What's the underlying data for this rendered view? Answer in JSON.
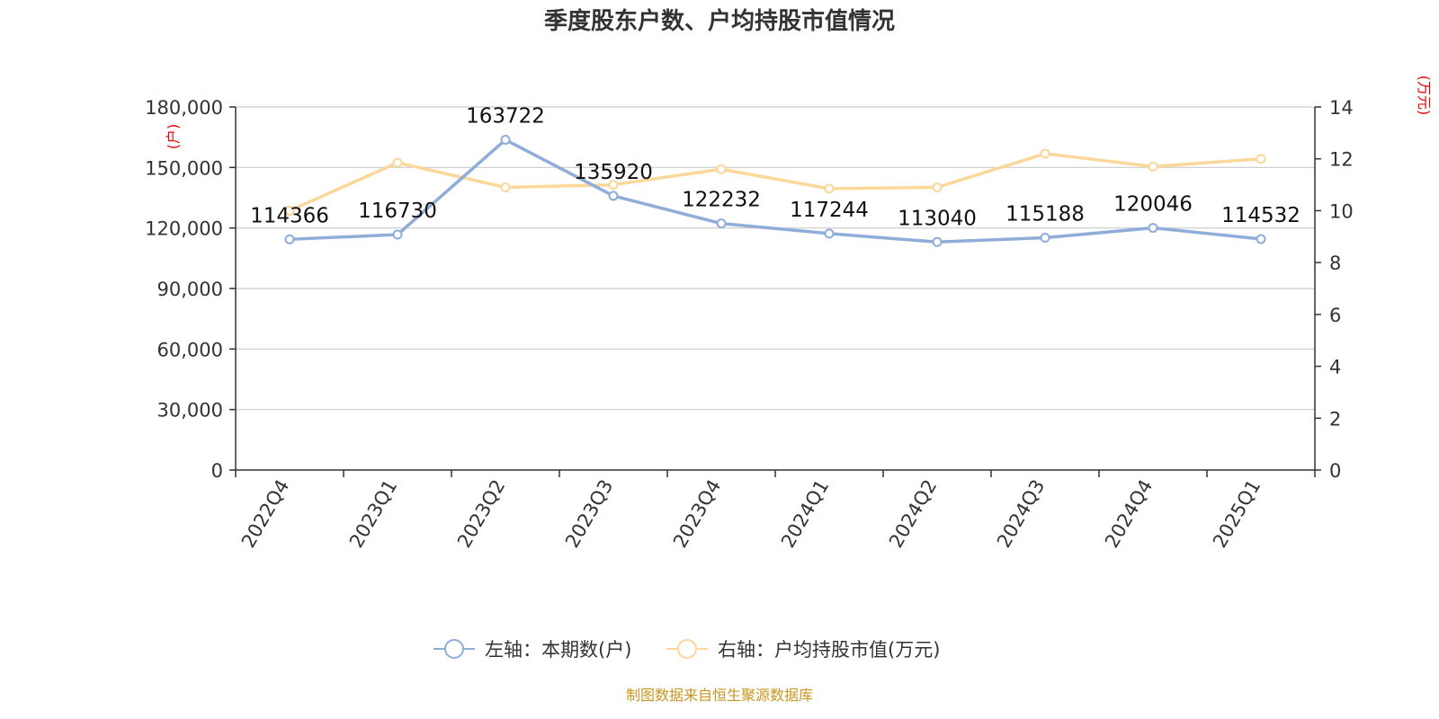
{
  "colors": {
    "left_series": "#8eaed9",
    "right_series": "#fcd79a",
    "unit_label": "#e60000",
    "source": "#c8961e"
  },
  "chart_data": {
    "type": "line",
    "title": "季度股东户数、户均持股市值情况",
    "categories": [
      "2022Q4",
      "2023Q1",
      "2023Q2",
      "2023Q3",
      "2023Q4",
      "2024Q1",
      "2024Q2",
      "2024Q3",
      "2024Q4",
      "2025Q1"
    ],
    "left_axis": {
      "unit": "(户)",
      "ylim": [
        0,
        180000
      ],
      "ticks": [
        0,
        30000,
        60000,
        90000,
        120000,
        150000,
        180000
      ],
      "tick_labels": [
        "0",
        "30,000",
        "60,000",
        "90,000",
        "120,000",
        "150,000",
        "180,000"
      ]
    },
    "right_axis": {
      "unit": "(万元)",
      "ylim": [
        0,
        14
      ],
      "ticks": [
        0,
        2,
        4,
        6,
        8,
        10,
        12,
        14
      ],
      "tick_labels": [
        "0",
        "2",
        "4",
        "6",
        "8",
        "10",
        "12",
        "14"
      ]
    },
    "series": [
      {
        "name": "左轴：本期数(户)",
        "axis": "left",
        "values": [
          114366,
          116730,
          163722,
          135920,
          122232,
          117244,
          113040,
          115188,
          120046,
          114532
        ],
        "labels": [
          "114366",
          "116730",
          "163722",
          "135920",
          "122232",
          "117244",
          "113040",
          "115188",
          "120046",
          "114532"
        ]
      },
      {
        "name": "右轴：户均持股市值(万元)",
        "axis": "right",
        "values": [
          10.0,
          11.85,
          10.9,
          11.0,
          11.6,
          10.85,
          10.9,
          12.2,
          11.7,
          12.0
        ]
      }
    ],
    "grid": true,
    "legend": "bottom-center"
  },
  "source": "制图数据来自恒生聚源数据库"
}
